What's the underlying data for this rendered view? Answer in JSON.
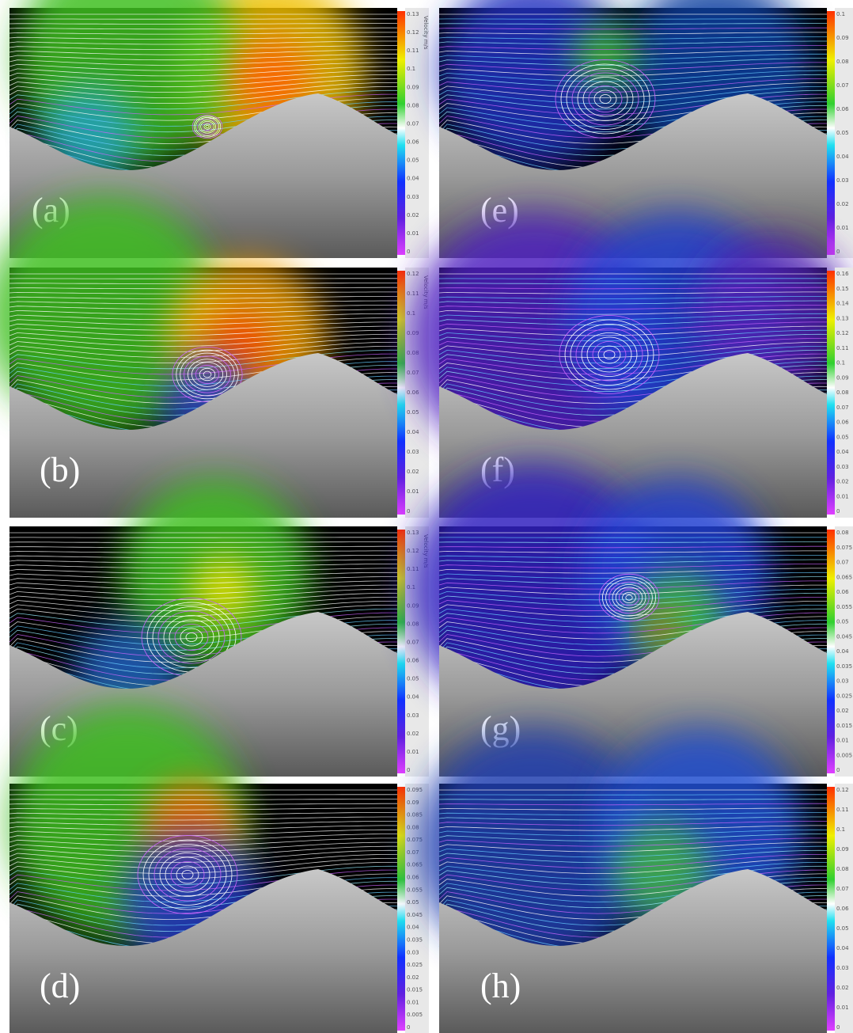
{
  "panels": [
    {
      "label": "(a)",
      "colorbar": {
        "title": "Velocity m/s",
        "ticks": [
          0.13,
          0.12,
          0.11,
          0.1,
          0.09,
          0.08,
          0.07,
          0.06,
          0.05,
          0.04,
          0.03,
          0.02,
          0.01,
          0
        ]
      }
    },
    {
      "label": "(b)",
      "colorbar": {
        "title": "Velocity m/s",
        "ticks": [
          0.12,
          0.11,
          0.1,
          0.09,
          0.08,
          0.07,
          0.06,
          0.05,
          0.04,
          0.03,
          0.02,
          0.01,
          0
        ]
      }
    },
    {
      "label": "(c)",
      "colorbar": {
        "title": "Velocity m/s",
        "ticks": [
          0.13,
          0.12,
          0.11,
          0.1,
          0.09,
          0.08,
          0.07,
          0.06,
          0.05,
          0.04,
          0.03,
          0.02,
          0.01,
          0
        ]
      }
    },
    {
      "label": "(d)",
      "colorbar": {
        "ticks": [
          0.095,
          0.09,
          0.085,
          0.08,
          0.075,
          0.07,
          0.065,
          0.06,
          0.055,
          0.05,
          0.045,
          0.04,
          0.035,
          0.03,
          0.025,
          0.02,
          0.015,
          0.01,
          0.005,
          0
        ]
      }
    },
    {
      "label": "(e)",
      "colorbar": {
        "ticks": [
          0.1,
          0.09,
          0.08,
          0.07,
          0.06,
          0.05,
          0.04,
          0.03,
          0.02,
          0.01,
          0
        ]
      }
    },
    {
      "label": "(f)",
      "colorbar": {
        "ticks": [
          0.16,
          0.15,
          0.14,
          0.13,
          0.12,
          0.11,
          0.1,
          0.09,
          0.08,
          0.07,
          0.06,
          0.05,
          0.04,
          0.03,
          0.02,
          0.01,
          0
        ]
      }
    },
    {
      "label": "(g)",
      "colorbar": {
        "ticks": [
          0.08,
          0.075,
          0.07,
          0.065,
          0.06,
          0.055,
          0.05,
          0.045,
          0.04,
          0.035,
          0.03,
          0.025,
          0.02,
          0.015,
          0.01,
          0.005,
          0
        ]
      }
    },
    {
      "label": "(h)",
      "colorbar": {
        "ticks": [
          0.12,
          0.11,
          0.1,
          0.09,
          0.08,
          0.07,
          0.06,
          0.05,
          0.04,
          0.03,
          0.02,
          0.01,
          0
        ]
      }
    }
  ]
}
